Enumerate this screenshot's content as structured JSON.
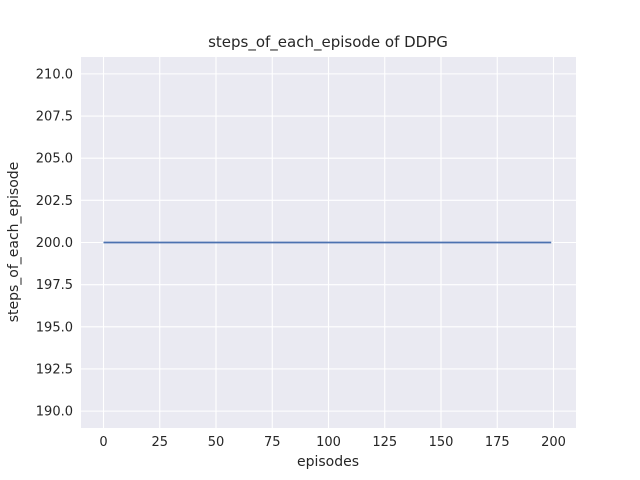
{
  "figure": {
    "background": "#ffffff",
    "axes_background": "#eaeaf2",
    "grid_color": "#ffffff",
    "text_color": "#262626",
    "line_color": "#4c72b0"
  },
  "chart_data": {
    "type": "line",
    "title": "steps_of_each_episode of DDPG",
    "xlabel": "episodes",
    "ylabel": "steps_of_each_episode",
    "xlim": [
      -10,
      210
    ],
    "ylim": [
      189,
      211
    ],
    "xtick_values": [
      0,
      25,
      50,
      75,
      100,
      125,
      150,
      175,
      200
    ],
    "xtick_labels": [
      "0",
      "25",
      "50",
      "75",
      "100",
      "125",
      "150",
      "175",
      "200"
    ],
    "ytick_values": [
      190,
      192.5,
      195,
      197.5,
      200,
      202.5,
      205,
      207.5,
      210
    ],
    "ytick_labels": [
      "190.0",
      "192.5",
      "195.0",
      "197.5",
      "200.0",
      "202.5",
      "205.0",
      "207.5",
      "210.0"
    ],
    "grid": true,
    "legend": "none",
    "series": [
      {
        "name": "steps_of_each_episode",
        "x": [
          0,
          199
        ],
        "y": [
          200,
          200
        ],
        "description": "constant value 200 for all 200 episodes"
      }
    ]
  }
}
